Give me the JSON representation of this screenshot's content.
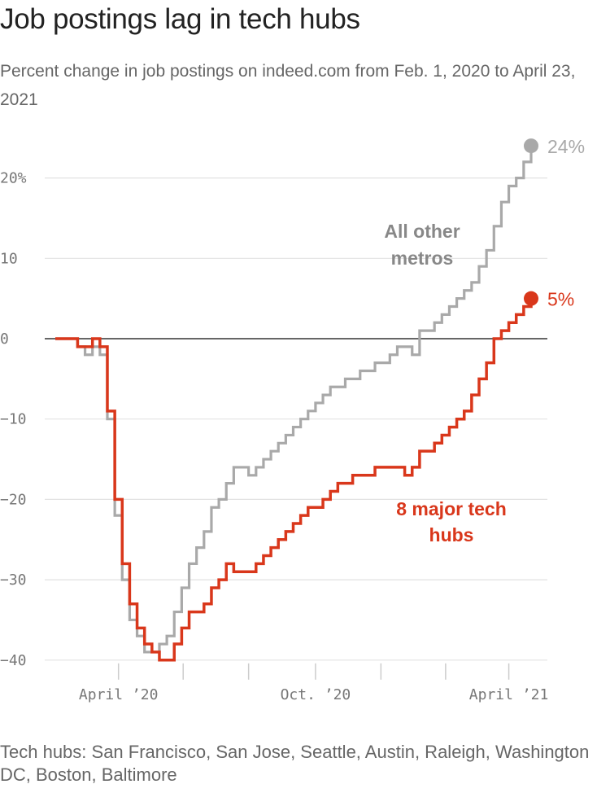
{
  "title": "Job postings lag in tech hubs",
  "subtitle": "Percent change in job postings on indeed.com from Feb. 1, 2020 to April 23, 2021",
  "note": "Tech hubs: San Francisco, San Jose, Seattle, Austin, Raleigh, Washington DC, Boston, Baltimore",
  "colors": {
    "other": "#a9a9a9",
    "tech": "#d9371b",
    "grid": "#e2e2e2",
    "zero": "#333333"
  },
  "chart_data": {
    "type": "line",
    "xlabel": "",
    "ylabel": "",
    "ylim": [
      -40,
      24
    ],
    "x_unit": "weeks since Feb. 1, 2020",
    "xlim": [
      0,
      64
    ],
    "yticks": [
      {
        "value": 20,
        "label": "20%"
      },
      {
        "value": 10,
        "label": "10"
      },
      {
        "value": 0,
        "label": "0"
      },
      {
        "value": -10,
        "label": "−10"
      },
      {
        "value": -20,
        "label": "−20"
      },
      {
        "value": -30,
        "label": "−30"
      },
      {
        "value": -40,
        "label": "−40"
      }
    ],
    "xticks": [
      {
        "value": 8.5,
        "label": "April ’20"
      },
      {
        "value": 35,
        "label": "Oct. ’20"
      },
      {
        "value": 61,
        "label": "April ’21"
      }
    ],
    "xtick_marks": [
      8.5,
      17.2,
      26,
      35,
      43.8,
      52.5,
      61
    ],
    "series": [
      {
        "name": "All other metros",
        "key": "other",
        "label_lines": [
          "All other",
          "metros"
        ],
        "end_label": "24%",
        "points": [
          [
            0,
            0
          ],
          [
            3,
            -1
          ],
          [
            4,
            -2
          ],
          [
            5,
            -1
          ],
          [
            6,
            -2
          ],
          [
            7,
            -10
          ],
          [
            8,
            -22
          ],
          [
            9,
            -30
          ],
          [
            10,
            -35
          ],
          [
            11,
            -37
          ],
          [
            12,
            -39
          ],
          [
            13,
            -39
          ],
          [
            14,
            -38
          ],
          [
            15,
            -37
          ],
          [
            16,
            -34
          ],
          [
            17,
            -31
          ],
          [
            18,
            -28
          ],
          [
            19,
            -26
          ],
          [
            20,
            -24
          ],
          [
            21,
            -21
          ],
          [
            22,
            -20
          ],
          [
            23,
            -18
          ],
          [
            24,
            -16
          ],
          [
            25,
            -16
          ],
          [
            26,
            -17
          ],
          [
            27,
            -16
          ],
          [
            28,
            -15
          ],
          [
            29,
            -14
          ],
          [
            30,
            -13
          ],
          [
            31,
            -12
          ],
          [
            32,
            -11
          ],
          [
            33,
            -10
          ],
          [
            34,
            -9
          ],
          [
            35,
            -8
          ],
          [
            36,
            -7
          ],
          [
            37,
            -6
          ],
          [
            38,
            -6
          ],
          [
            39,
            -5
          ],
          [
            40,
            -5
          ],
          [
            41,
            -4
          ],
          [
            42,
            -4
          ],
          [
            43,
            -3
          ],
          [
            44,
            -3
          ],
          [
            45,
            -2
          ],
          [
            46,
            -1
          ],
          [
            47,
            -1
          ],
          [
            48,
            -2
          ],
          [
            49,
            1
          ],
          [
            50,
            1
          ],
          [
            51,
            2
          ],
          [
            52,
            3
          ],
          [
            53,
            4
          ],
          [
            54,
            5
          ],
          [
            55,
            6
          ],
          [
            56,
            7
          ],
          [
            57,
            9
          ],
          [
            58,
            11
          ],
          [
            59,
            14
          ],
          [
            60,
            17
          ],
          [
            61,
            19
          ],
          [
            62,
            20
          ],
          [
            63,
            22
          ],
          [
            64,
            24
          ]
        ]
      },
      {
        "name": "8 major tech hubs",
        "key": "tech",
        "label_lines": [
          "8 major tech",
          "hubs"
        ],
        "end_label": "5%",
        "points": [
          [
            0,
            0
          ],
          [
            3,
            -1
          ],
          [
            4,
            -1
          ],
          [
            5,
            0
          ],
          [
            6,
            -1
          ],
          [
            7,
            -9
          ],
          [
            8,
            -20
          ],
          [
            9,
            -28
          ],
          [
            10,
            -33
          ],
          [
            11,
            -36
          ],
          [
            12,
            -38
          ],
          [
            13,
            -39
          ],
          [
            14,
            -40
          ],
          [
            15,
            -40
          ],
          [
            16,
            -38
          ],
          [
            17,
            -36
          ],
          [
            18,
            -34
          ],
          [
            19,
            -34
          ],
          [
            20,
            -33
          ],
          [
            21,
            -31
          ],
          [
            22,
            -30
          ],
          [
            23,
            -28
          ],
          [
            24,
            -29
          ],
          [
            25,
            -29
          ],
          [
            26,
            -29
          ],
          [
            27,
            -28
          ],
          [
            28,
            -27
          ],
          [
            29,
            -26
          ],
          [
            30,
            -25
          ],
          [
            31,
            -24
          ],
          [
            32,
            -23
          ],
          [
            33,
            -22
          ],
          [
            34,
            -21
          ],
          [
            35,
            -21
          ],
          [
            36,
            -20
          ],
          [
            37,
            -19
          ],
          [
            38,
            -18
          ],
          [
            39,
            -18
          ],
          [
            40,
            -17
          ],
          [
            41,
            -17
          ],
          [
            42,
            -17
          ],
          [
            43,
            -16
          ],
          [
            44,
            -16
          ],
          [
            45,
            -16
          ],
          [
            46,
            -16
          ],
          [
            47,
            -17
          ],
          [
            48,
            -16
          ],
          [
            49,
            -14
          ],
          [
            50,
            -14
          ],
          [
            51,
            -13
          ],
          [
            52,
            -12
          ],
          [
            53,
            -11
          ],
          [
            54,
            -10
          ],
          [
            55,
            -9
          ],
          [
            56,
            -7
          ],
          [
            57,
            -5
          ],
          [
            58,
            -3
          ],
          [
            59,
            0
          ],
          [
            60,
            1
          ],
          [
            61,
            2
          ],
          [
            62,
            3
          ],
          [
            63,
            4
          ],
          [
            64,
            5
          ]
        ]
      }
    ]
  }
}
